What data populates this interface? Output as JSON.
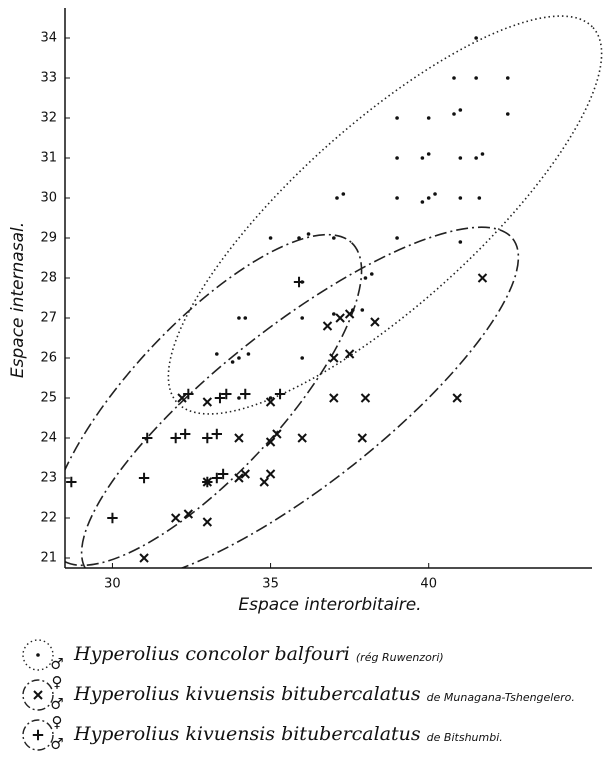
{
  "chart_data": {
    "type": "scatter",
    "xlabel": "Espace interorbitaire.",
    "ylabel": "Espace internasal.",
    "xlim": [
      28.5,
      45.1
    ],
    "ylim": [
      20.75,
      34.65
    ],
    "xticks": [
      30,
      35,
      40
    ],
    "yticks": [
      21,
      22,
      23,
      24,
      25,
      26,
      27,
      28,
      29,
      30,
      31,
      32,
      33,
      34
    ],
    "series": [
      {
        "name": "Hyperolius concolor balfouri",
        "sex": "♂♀",
        "locality": "(rég Ruwenzori)",
        "marker": "dot",
        "color": "#111111",
        "x": [
          41.5,
          40.8,
          41.5,
          42.5,
          39.0,
          40.0,
          40.8,
          41.0,
          42.5,
          39.0,
          39.8,
          40.0,
          41.0,
          41.5,
          41.7,
          37.1,
          37.3,
          39.0,
          39.8,
          40.0,
          40.2,
          41.0,
          41.6,
          35.0,
          35.9,
          36.2,
          37.0,
          39.0,
          41.0,
          38.0,
          38.2,
          36.0,
          34.0,
          34.2,
          36.0,
          37.0,
          37.6,
          37.9,
          33.3,
          33.8,
          34.0,
          34.3,
          36.0,
          34.0,
          35.0
        ],
        "values": [
          34.0,
          33.0,
          33.0,
          33.0,
          32.0,
          32.0,
          32.1,
          32.2,
          32.1,
          31.0,
          31.0,
          31.1,
          31.0,
          31.0,
          31.1,
          30.0,
          30.1,
          30.0,
          29.9,
          30.0,
          30.1,
          30.0,
          30.0,
          29.0,
          29.0,
          29.1,
          29.0,
          29.0,
          28.9,
          28.0,
          28.1,
          27.9,
          27.0,
          27.0,
          27.0,
          27.1,
          27.2,
          27.2,
          26.1,
          25.9,
          26.0,
          26.1,
          26.0,
          25.0,
          25.0
        ]
      },
      {
        "name": "Hyperolius kivuensis bitubercalatus",
        "sex": "♂♀",
        "locality": "de Munagana-Tshengelero.",
        "marker": "x",
        "color": "#111111",
        "x": [
          41.7,
          37.2,
          36.8,
          37.5,
          37.0,
          37.5,
          38.3,
          33.0,
          35.0,
          37.0,
          38.0,
          40.9,
          34.0,
          35.0,
          35.2,
          36.0,
          37.9,
          31.0,
          32.0,
          32.4,
          33.0,
          33.0,
          34.0,
          34.2,
          34.8,
          35.0,
          32.2
        ],
        "values": [
          28.0,
          27.0,
          26.8,
          27.1,
          26.0,
          26.1,
          26.9,
          24.9,
          24.9,
          25.0,
          25.0,
          25.0,
          24.0,
          23.9,
          24.1,
          24.0,
          24.0,
          21.0,
          22.0,
          22.1,
          21.9,
          22.9,
          23.0,
          23.1,
          22.9,
          23.1,
          25.0
        ]
      },
      {
        "name": "Hyperolius kivuensis bitubercalatus",
        "sex": "♂",
        "locality": "de Bitshumbi.",
        "marker": "plus",
        "color": "#111111",
        "x": [
          35.9,
          32.4,
          33.4,
          33.6,
          34.2,
          35.3,
          31.1,
          32.0,
          32.3,
          33.0,
          33.3,
          31.0,
          33.0,
          33.3,
          33.5,
          28.7,
          30.0
        ],
        "values": [
          27.9,
          25.1,
          25.0,
          25.1,
          25.1,
          25.1,
          24.0,
          24.0,
          24.1,
          24.0,
          24.1,
          23.0,
          22.9,
          23.0,
          23.1,
          22.9,
          22.0
        ]
      }
    ]
  }
}
